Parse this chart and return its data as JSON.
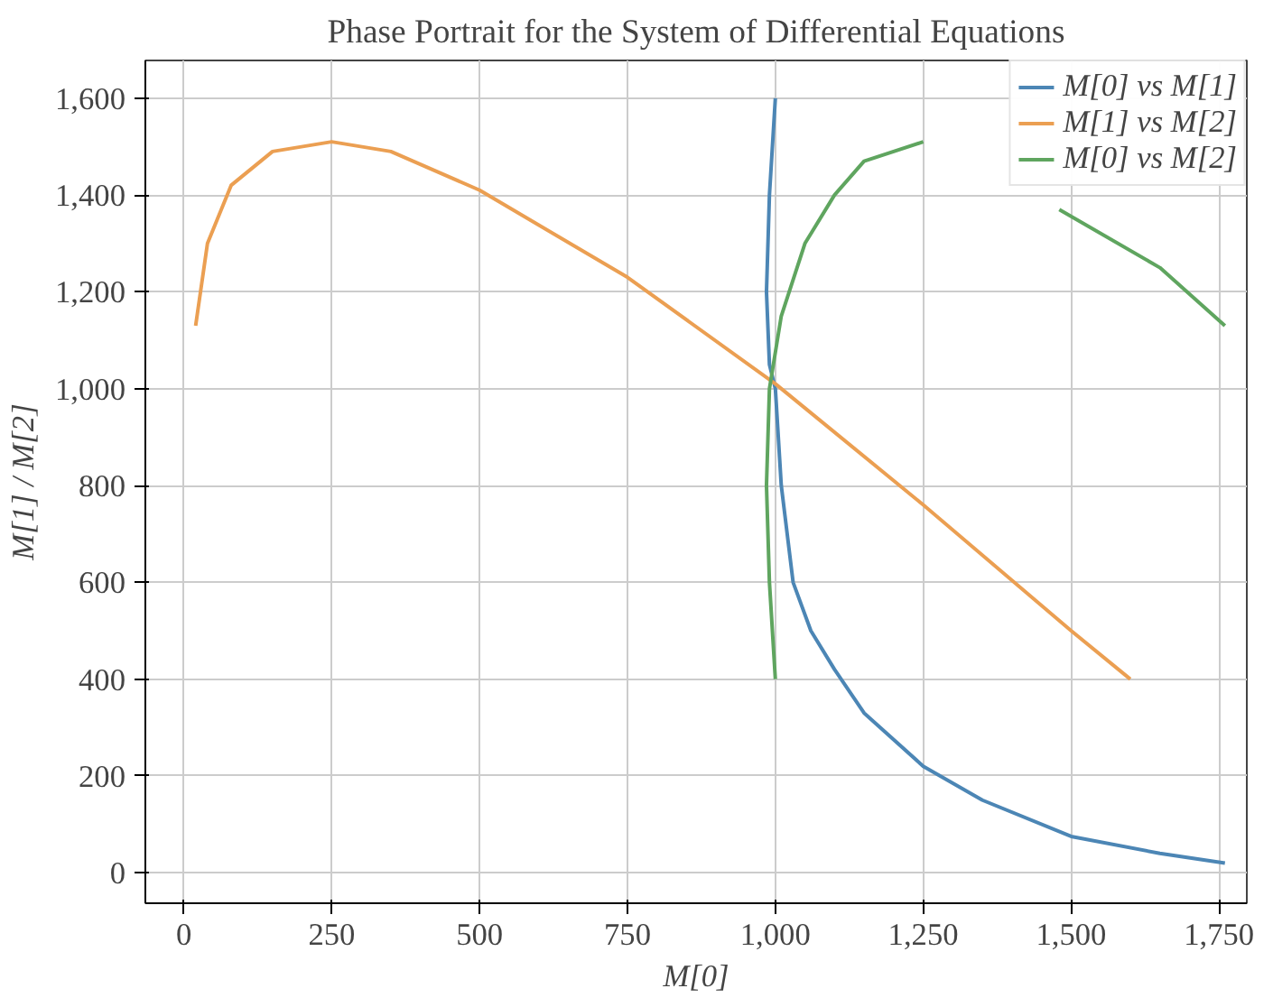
{
  "chart_data": {
    "type": "line",
    "title": "Phase Portrait for the System of Differential Equations",
    "xlabel": "M[0]",
    "ylabel": "M[1] / M[2]",
    "xlim": [
      -65,
      1797
    ],
    "ylim": [
      -63,
      1678
    ],
    "xticks": [
      0,
      250,
      500,
      750,
      {
        "value": 1000,
        "label": "1,000"
      },
      {
        "value": 1250,
        "label": "1,250"
      },
      {
        "value": 1500,
        "label": "1,500"
      },
      {
        "value": 1750,
        "label": "1,750"
      }
    ],
    "yticks": [
      0,
      200,
      400,
      600,
      800,
      {
        "value": 1000,
        "label": "1,000"
      },
      {
        "value": 1200,
        "label": "1,200"
      },
      {
        "value": 1400,
        "label": "1,400"
      },
      {
        "value": 1600,
        "label": "1,600"
      }
    ],
    "grid": true,
    "legend": "top right",
    "marker": "none",
    "line_style": "solid",
    "series": [
      {
        "name": "M[0] vs M[1]",
        "color": "#4c86b5",
        "x": [
          1000,
          990,
          985,
          990,
          1000,
          1010,
          1030,
          1060,
          1100,
          1150,
          1250,
          1350,
          1500,
          1650,
          1760
        ],
        "values": [
          1600,
          1400,
          1200,
          1050,
          1000,
          800,
          600,
          500,
          420,
          330,
          220,
          150,
          75,
          40,
          20
        ]
      },
      {
        "name": "M[1] vs M[2]",
        "color": "#eb9f52",
        "x": [
          20,
          40,
          80,
          150,
          250,
          350,
          500,
          750,
          1000,
          1250,
          1500,
          1600
        ],
        "values": [
          1130,
          1300,
          1420,
          1490,
          1510,
          1490,
          1410,
          1230,
          1010,
          760,
          500,
          400
        ]
      },
      {
        "name": "M[0] vs M[2]",
        "color": "#5fa55f",
        "x": [
          1000,
          990,
          985,
          990,
          1010,
          1050,
          1100,
          1150,
          1250,
          1290,
          1480,
          1650,
          1760
        ],
        "values": [
          400,
          600,
          800,
          1000,
          1150,
          1300,
          1400,
          1470,
          1510,
          null,
          1370,
          1250,
          1130
        ]
      }
    ]
  }
}
